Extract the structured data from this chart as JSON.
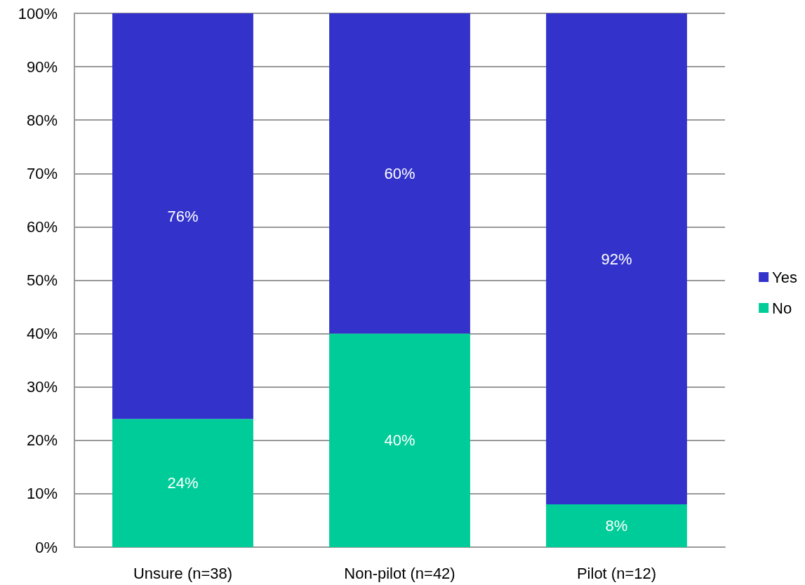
{
  "chart_data": {
    "type": "bar",
    "stacked": true,
    "categories": [
      "Unsure (n=38)",
      "Non-pilot (n=42)",
      "Pilot (n=12)"
    ],
    "series": [
      {
        "name": "No",
        "color": "#00cc99",
        "values": [
          24,
          40,
          8
        ],
        "value_labels": [
          "24%",
          "40%",
          "8%"
        ]
      },
      {
        "name": "Yes",
        "color": "#3333cc",
        "values": [
          76,
          60,
          92
        ],
        "value_labels": [
          "76%",
          "60%",
          "92%"
        ]
      }
    ],
    "ylim": [
      0,
      100
    ],
    "yticks": [
      {
        "value": 0,
        "label": "0%"
      },
      {
        "value": 10,
        "label": "10%"
      },
      {
        "value": 20,
        "label": "20%"
      },
      {
        "value": 30,
        "label": "30%"
      },
      {
        "value": 40,
        "label": "40%"
      },
      {
        "value": 50,
        "label": "50%"
      },
      {
        "value": 60,
        "label": "60%"
      },
      {
        "value": 70,
        "label": "70%"
      },
      {
        "value": 80,
        "label": "80%"
      },
      {
        "value": 90,
        "label": "90%"
      },
      {
        "value": 100,
        "label": "100%"
      }
    ],
    "grid": "y",
    "legend": "right"
  }
}
